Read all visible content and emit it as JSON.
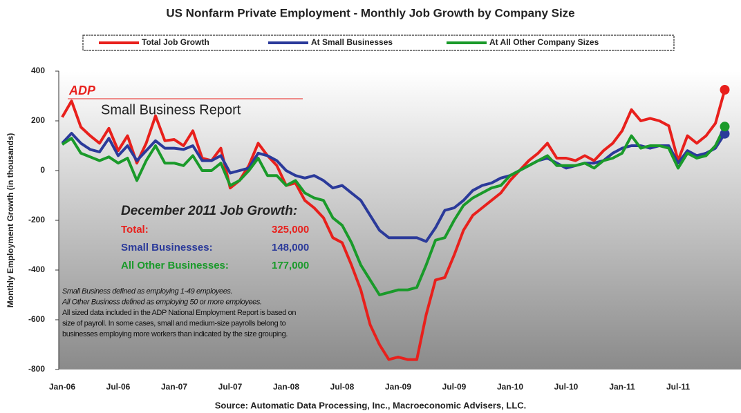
{
  "chart_data": {
    "type": "line",
    "title": "US Nonfarm Private Employment - Monthly Job Growth by Company Size",
    "y_axis_label": "Monthly Employment Growth (in thousands)",
    "source": "Source: Automatic Data Processing, Inc., Macroeconomic Advisers, LLC.",
    "logo": "ADP",
    "report_name": "Small Business Report",
    "summary_title": "December 2011 Job Growth:",
    "summary": [
      {
        "label": "Total:",
        "value": "325,000",
        "color": "#e8201c"
      },
      {
        "label": "Small Businesses:",
        "value": "148,000",
        "color": "#2b3a9a"
      },
      {
        "label": "All Other Businesses:",
        "value": "177,000",
        "color": "#1a9a2a"
      }
    ],
    "notes": [
      "Small Business defined as employing 1-49 employees.",
      "All Other Business defined as employing 50 or more employees.",
      "All sized data included in the ADP National Employment Report is based on",
      "size of payroll.  In some cases, small and medium-size payrolls belong to",
      "businesses employing more workers than indicated by the size grouping."
    ],
    "categories": [
      "Jan-06",
      null,
      null,
      null,
      null,
      null,
      "Jul-06",
      null,
      null,
      null,
      null,
      null,
      "Jan-07",
      null,
      null,
      null,
      null,
      null,
      "Jul-07",
      null,
      null,
      null,
      null,
      null,
      "Jan-08",
      null,
      null,
      null,
      null,
      null,
      "Jul-08",
      null,
      null,
      null,
      null,
      null,
      "Jan-09",
      null,
      null,
      null,
      null,
      null,
      "Jul-09",
      null,
      null,
      null,
      null,
      null,
      "Jan-10",
      null,
      null,
      null,
      null,
      null,
      "Jul-10",
      null,
      null,
      null,
      null,
      null,
      "Jan-11",
      null,
      null,
      null,
      null,
      null,
      "Jul-11",
      null,
      null,
      null,
      null,
      null
    ],
    "series": [
      {
        "name": "Total Job Growth",
        "color": "#e8201c",
        "values": [
          215,
          280,
          175,
          140,
          110,
          170,
          80,
          140,
          30,
          110,
          220,
          120,
          125,
          100,
          160,
          50,
          40,
          90,
          -70,
          -40,
          20,
          110,
          60,
          20,
          -60,
          -50,
          -120,
          -150,
          -190,
          -270,
          -290,
          -380,
          -480,
          -620,
          -700,
          -760,
          -750,
          -760,
          -760,
          -580,
          -440,
          -430,
          -340,
          -240,
          -180,
          -150,
          -120,
          -90,
          -40,
          0,
          40,
          70,
          110,
          50,
          50,
          40,
          60,
          40,
          80,
          110,
          160,
          245,
          200,
          210,
          200,
          180,
          40,
          140,
          110,
          140,
          190,
          325
        ]
      },
      {
        "name": "At Small Businesses",
        "color": "#2b3a9a",
        "values": [
          110,
          150,
          110,
          85,
          75,
          130,
          60,
          100,
          40,
          80,
          120,
          90,
          90,
          85,
          100,
          40,
          40,
          60,
          -10,
          0,
          10,
          70,
          60,
          40,
          0,
          -20,
          -30,
          -20,
          -40,
          -70,
          -60,
          -90,
          -120,
          -180,
          -240,
          -270,
          -270,
          -270,
          -270,
          -285,
          -230,
          -160,
          -150,
          -120,
          -80,
          -60,
          -50,
          -30,
          -20,
          0,
          20,
          40,
          50,
          30,
          10,
          20,
          30,
          30,
          40,
          70,
          90,
          100,
          100,
          90,
          100,
          100,
          30,
          80,
          60,
          70,
          90,
          148
        ]
      },
      {
        "name": "At All Other Company Sizes",
        "color": "#1a9a2a",
        "values": [
          105,
          130,
          70,
          55,
          40,
          55,
          30,
          50,
          -40,
          40,
          100,
          30,
          30,
          20,
          60,
          0,
          0,
          30,
          -60,
          -40,
          0,
          50,
          -20,
          -20,
          -60,
          -40,
          -90,
          -110,
          -120,
          -190,
          -220,
          -290,
          -380,
          -440,
          -500,
          -490,
          -480,
          -480,
          -470,
          -380,
          -280,
          -270,
          -200,
          -140,
          -110,
          -90,
          -70,
          -60,
          -20,
          0,
          20,
          40,
          60,
          20,
          20,
          20,
          30,
          10,
          40,
          50,
          70,
          140,
          90,
          100,
          100,
          90,
          10,
          70,
          50,
          60,
          100,
          177
        ]
      }
    ],
    "ylim": [
      -800,
      400
    ],
    "yticks": [
      -800,
      -600,
      -400,
      -200,
      0,
      200,
      400
    ],
    "grid": false
  }
}
